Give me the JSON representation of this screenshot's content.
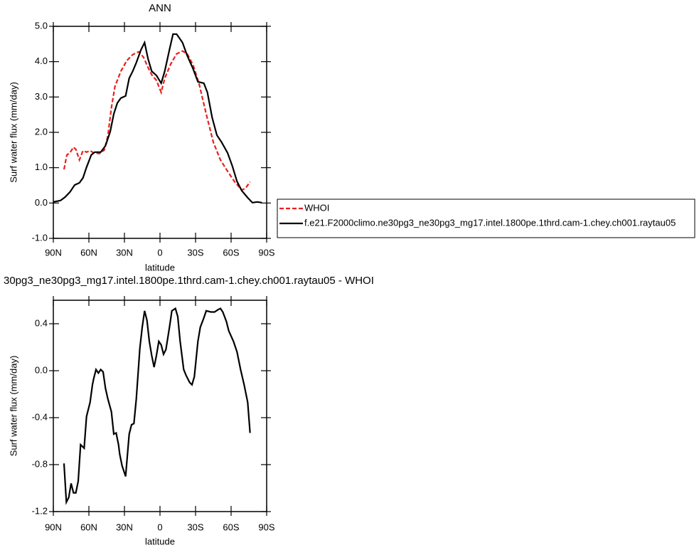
{
  "chart_data": [
    {
      "type": "line",
      "title": "ANN",
      "xlabel": "latitude",
      "ylabel": "Surf water flux (mm/day)",
      "xlim": [
        90,
        -90
      ],
      "xticks": [
        {
          "value": 90,
          "label": "90N"
        },
        {
          "value": 60,
          "label": "60N"
        },
        {
          "value": 30,
          "label": "30N"
        },
        0,
        {
          "value": -30,
          "label": "30S"
        },
        {
          "value": -60,
          "label": "60S"
        },
        {
          "value": -90,
          "label": "90S"
        }
      ],
      "ylim": [
        -1,
        5
      ],
      "yticks": [
        {
          "value": -1,
          "label": "-1.0"
        },
        {
          "value": 0,
          "label": "0.0"
        },
        {
          "value": 1,
          "label": "1.0"
        },
        {
          "value": 2,
          "label": "2.0"
        },
        {
          "value": 3,
          "label": "3.0"
        },
        {
          "value": 4,
          "label": "4.0"
        },
        {
          "value": 5,
          "label": "5.0"
        }
      ],
      "legend": "right",
      "series": [
        {
          "name": "WHOI",
          "color": "#e8201e",
          "line_style": "dashed",
          "x": [
            81,
            78.6,
            76,
            73,
            71,
            68,
            65,
            62,
            59,
            56,
            51,
            47,
            44,
            41,
            38,
            33,
            28,
            23,
            18,
            14,
            10,
            7,
            3,
            -1,
            -4,
            -9,
            -14,
            -19,
            -23,
            -28,
            -33,
            -39,
            -45,
            -51,
            -57,
            -63,
            -69,
            -72,
            -76
          ],
          "values": [
            0.95,
            1.36,
            1.42,
            1.58,
            1.52,
            1.22,
            1.48,
            1.44,
            1.48,
            1.42,
            1.4,
            1.5,
            1.9,
            2.7,
            3.3,
            3.73,
            4.03,
            4.2,
            4.28,
            4.13,
            3.83,
            3.63,
            3.47,
            3.13,
            3.53,
            3.93,
            4.22,
            4.3,
            4.22,
            3.9,
            3.37,
            2.52,
            1.72,
            1.22,
            0.9,
            0.6,
            0.37,
            0.41,
            0.6
          ]
        },
        {
          "name": "f.e21.F2000climo.ne30pg3_ne30pg3_mg17.intel.1800pe.1thrd.cam-1.chey.ch001.raytau05",
          "color": "#000000",
          "line_style": "solid",
          "x": [
            90,
            84,
            80,
            76,
            72,
            68,
            65,
            62,
            58,
            55,
            50,
            46,
            42,
            39,
            36,
            33,
            29,
            26,
            23,
            20,
            16,
            13,
            10,
            7,
            3,
            -1,
            -4,
            -8,
            -11,
            -14,
            -19,
            -23,
            -28,
            -32,
            -37,
            -40,
            -44,
            -48,
            -52,
            -57,
            -61,
            -65,
            -69,
            -74,
            -78,
            -82,
            -86
          ],
          "values": [
            0.03,
            0.07,
            0.17,
            0.31,
            0.51,
            0.57,
            0.71,
            1.01,
            1.36,
            1.44,
            1.44,
            1.62,
            2.02,
            2.52,
            2.83,
            2.97,
            3.03,
            3.53,
            3.73,
            3.97,
            4.34,
            4.54,
            4.07,
            3.73,
            3.61,
            3.39,
            3.73,
            4.34,
            4.78,
            4.78,
            4.54,
            4.17,
            3.79,
            3.43,
            3.39,
            3.13,
            2.42,
            1.92,
            1.72,
            1.42,
            1.05,
            0.61,
            0.35,
            0.15,
            0.01,
            0.03,
            0.01
          ]
        }
      ]
    },
    {
      "type": "line",
      "title": "30pg3_ne30pg3_mg17.intel.1800pe.1thrd.cam-1.chey.ch001.raytau05 - WHOI",
      "xlabel": "latitude",
      "ylabel": "Surf water flux (mm/day)",
      "xlim": [
        90,
        -90
      ],
      "xticks": [
        {
          "value": 90,
          "label": "90N"
        },
        {
          "value": 60,
          "label": "60N"
        },
        {
          "value": 30,
          "label": "30N"
        },
        0,
        {
          "value": -30,
          "label": "30S"
        },
        {
          "value": -60,
          "label": "60S"
        },
        {
          "value": -90,
          "label": "90S"
        }
      ],
      "ylim": [
        -1.2,
        0.6
      ],
      "yticks": [
        -1.2,
        -0.8,
        -0.4,
        {
          "value": 0,
          "label": "0.0"
        },
        0.4
      ],
      "series": [
        {
          "color": "#000000",
          "line_style": "solid",
          "x": [
            81,
            79,
            77,
            75,
            73,
            71,
            69,
            67,
            64,
            62,
            59,
            57,
            56,
            54,
            52,
            50,
            48,
            46,
            44,
            41,
            39,
            37,
            35,
            34,
            32,
            29,
            28,
            26,
            24,
            22,
            20,
            17,
            15,
            13,
            11,
            9,
            7,
            5,
            3,
            1,
            -1,
            -3,
            -5,
            -8,
            -10,
            -13,
            -15,
            -17,
            -20,
            -22,
            -25,
            -27,
            -29,
            -32,
            -34,
            -37,
            -39,
            -43,
            -46,
            -49,
            -51,
            -53,
            -56,
            -58,
            -62,
            -65,
            -68,
            -71,
            -74,
            -76
          ],
          "values": [
            -0.79,
            -1.12,
            -1.08,
            -0.96,
            -1.04,
            -1.04,
            -0.94,
            -0.63,
            -0.66,
            -0.39,
            -0.27,
            -0.12,
            -0.07,
            0.01,
            -0.02,
            0.01,
            -0.01,
            -0.15,
            -0.24,
            -0.35,
            -0.54,
            -0.53,
            -0.63,
            -0.71,
            -0.81,
            -0.9,
            -0.78,
            -0.54,
            -0.46,
            -0.45,
            -0.24,
            0.19,
            0.37,
            0.51,
            0.43,
            0.25,
            0.13,
            0.03,
            0.13,
            0.25,
            0.22,
            0.14,
            0.18,
            0.37,
            0.51,
            0.53,
            0.46,
            0.25,
            0.01,
            -0.04,
            -0.1,
            -0.12,
            -0.05,
            0.25,
            0.37,
            0.45,
            0.51,
            0.5,
            0.5,
            0.52,
            0.53,
            0.5,
            0.42,
            0.34,
            0.25,
            0.16,
            0.01,
            -0.12,
            -0.27,
            -0.53
          ]
        }
      ]
    }
  ]
}
